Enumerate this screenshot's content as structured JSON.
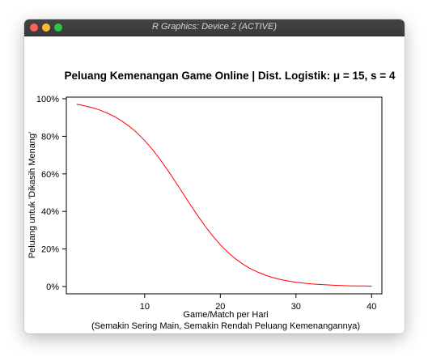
{
  "window": {
    "title": "R Graphics: Device 2 (ACTIVE)"
  },
  "chart_data": {
    "type": "line",
    "title": "Peluang Kemenangan Game Online | Dist. Logistik: μ = 15, s = 4",
    "xlabel": "Game/Match per Hari",
    "xlabel_line2": "(Semakin Sering Main, Semakin Rendah Peluang Kemenangannya)",
    "ylabel": "Peluang untuk 'Dikasih Menang'",
    "xlim": [
      1,
      40
    ],
    "ylim": [
      0,
      1
    ],
    "x_ticks": [
      10,
      20,
      30,
      40
    ],
    "y_ticks": [
      0,
      0.2,
      0.4,
      0.6,
      0.8,
      1.0
    ],
    "y_tick_labels": [
      "0%",
      "20%",
      "40%",
      "60%",
      "80%",
      "100%"
    ],
    "line_color": "#ff0000",
    "x": [
      1,
      2,
      3,
      4,
      5,
      6,
      7,
      8,
      9,
      10,
      11,
      12,
      13,
      14,
      15,
      16,
      17,
      18,
      19,
      20,
      21,
      22,
      23,
      24,
      25,
      26,
      27,
      28,
      29,
      30,
      31,
      32,
      33,
      34,
      35,
      36,
      37,
      38,
      39,
      40
    ],
    "values": [
      0.971,
      0.963,
      0.953,
      0.941,
      0.924,
      0.905,
      0.881,
      0.852,
      0.818,
      0.777,
      0.731,
      0.679,
      0.622,
      0.562,
      0.5,
      0.438,
      0.378,
      0.321,
      0.269,
      0.223,
      0.182,
      0.148,
      0.119,
      0.095,
      0.076,
      0.06,
      0.047,
      0.037,
      0.029,
      0.023,
      0.018,
      0.014,
      0.011,
      0.009,
      0.007,
      0.005,
      0.004,
      0.003,
      0.003,
      0.002
    ]
  }
}
